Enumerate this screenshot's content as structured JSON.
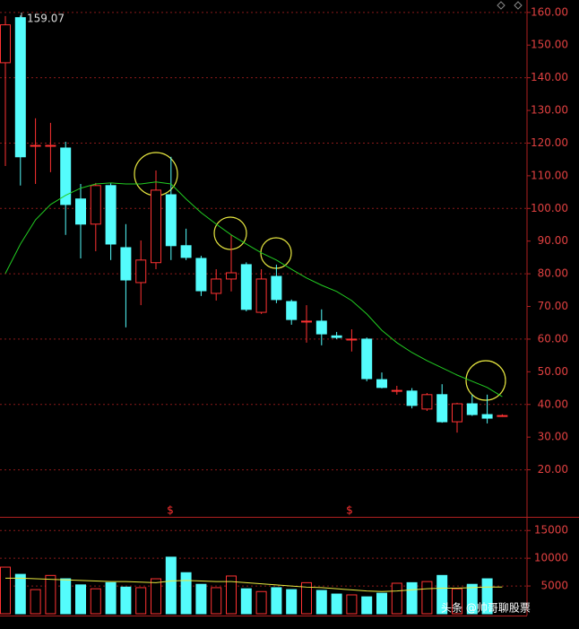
{
  "chart_data": [
    {
      "type": "candlestick",
      "ylim": [
        5.6,
        163.8
      ],
      "yticks": [
        {
          "value": 20,
          "label": "20.00"
        },
        {
          "value": 30,
          "label": "30.00"
        },
        {
          "value": 40,
          "label": "40.00"
        },
        {
          "value": 50,
          "label": "50.00"
        },
        {
          "value": 60,
          "label": "60.00"
        },
        {
          "value": 70,
          "label": "70.00"
        },
        {
          "value": 80,
          "label": "80.00"
        },
        {
          "value": 90,
          "label": "90.00"
        },
        {
          "value": 100,
          "label": "100.00"
        },
        {
          "value": 110,
          "label": "110.00"
        },
        {
          "value": 120,
          "label": "120.00"
        },
        {
          "value": 130,
          "label": "130.00"
        },
        {
          "value": 140,
          "label": "140.00"
        },
        {
          "value": 150,
          "label": "150.00"
        },
        {
          "value": 160,
          "label": "160.00"
        }
      ],
      "up_color": "#ff3232",
      "down_color": "#54fcfc",
      "open": [
        144.6,
        158.4,
        119.3,
        119.3,
        118.5,
        102.9,
        95.2,
        107.0,
        88.0,
        77.3,
        83.4,
        104.2,
        88.6,
        84.7,
        74.0,
        78.4,
        82.8,
        68.2,
        79.2,
        71.5,
        65.5,
        65.5,
        61.0,
        60.0,
        60.0,
        47.6,
        44.1,
        44.1,
        38.6,
        43.0,
        34.7,
        40.2,
        36.9,
        36.6
      ],
      "high": [
        158.9,
        159.07,
        127.6,
        126.2,
        120.4,
        107.5,
        107.8,
        107.8,
        95.2,
        90.2,
        111.6,
        115.8,
        93.8,
        85.5,
        81.4,
        91.9,
        83.5,
        81.4,
        82.8,
        72.1,
        70.4,
        69.1,
        62.2,
        63.0,
        60.5,
        49.8,
        45.7,
        45.0,
        43.5,
        46.2,
        40.5,
        43.0,
        43.0,
        37.0
      ],
      "low": [
        113.0,
        107.0,
        107.5,
        111.1,
        91.9,
        84.7,
        86.9,
        84.2,
        63.6,
        70.4,
        81.4,
        84.2,
        84.2,
        73.2,
        71.8,
        74.6,
        68.5,
        67.7,
        71.0,
        64.4,
        58.9,
        58.1,
        60.0,
        56.2,
        47.1,
        44.9,
        43.0,
        38.8,
        38.0,
        34.4,
        31.4,
        36.5,
        34.2,
        36.2
      ],
      "close": [
        156.2,
        115.8,
        119.3,
        119.3,
        101.2,
        95.2,
        107.0,
        89.1,
        78.1,
        84.2,
        105.6,
        88.6,
        85.0,
        74.8,
        78.4,
        80.3,
        69.1,
        78.4,
        72.1,
        66.0,
        65.5,
        61.6,
        60.5,
        60.0,
        47.9,
        45.2,
        44.3,
        39.7,
        43.0,
        34.7,
        40.2,
        36.9,
        35.8,
        36.6
      ],
      "series": [
        {
          "color": "#22cc22",
          "values": [
            80.1,
            89.1,
            96.5,
            101.2,
            104.0,
            106.2,
            107.5,
            107.8,
            107.5,
            107.5,
            108.1,
            107.5,
            102.9,
            98.7,
            95.2,
            91.9,
            89.1,
            86.4,
            84.2,
            81.4,
            78.7,
            76.5,
            74.6,
            71.8,
            67.7,
            62.7,
            58.9,
            55.9,
            53.4,
            51.2,
            49.0,
            47.1,
            45.2,
            42.4
          ]
        }
      ],
      "markers": [
        "$",
        "$"
      ],
      "watermark": "头条 @帅哥聊股票"
    },
    {
      "type": "bar",
      "ylim": [
        0,
        17300
      ],
      "yticks": [
        5000,
        10000,
        15000
      ],
      "values": [
        8400,
        7100,
        4350,
        6900,
        6300,
        5200,
        4500,
        5600,
        4800,
        4700,
        6300,
        10200,
        7400,
        5300,
        4700,
        6800,
        4500,
        4000,
        4700,
        4350,
        5600,
        4200,
        3550,
        3400,
        3050,
        3700,
        5500,
        5600,
        5800,
        6900,
        4500,
        5300,
        6300,
        null
      ],
      "series": [
        {
          "color": "#e8e840",
          "values": [
            6400,
            6400,
            6300,
            6200,
            6100,
            6000,
            5900,
            5800,
            5800,
            5700,
            5600,
            5900,
            6000,
            5900,
            5800,
            5800,
            5600,
            5400,
            5200,
            5000,
            4800,
            4700,
            4500,
            4300,
            4100,
            4000,
            4100,
            4300,
            4500,
            4600,
            4600,
            4700,
            4800,
            4800
          ]
        }
      ]
    }
  ]
}
